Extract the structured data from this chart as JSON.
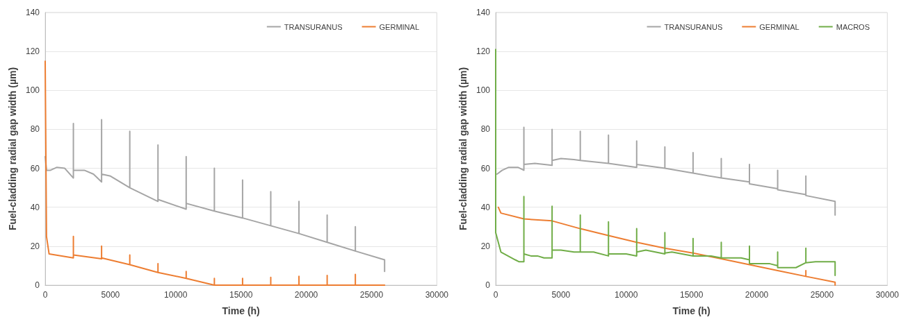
{
  "chart_data": [
    {
      "type": "line",
      "xlabel": "Time (h)",
      "ylabel": "Fuel-cladding radial gap width (µm)",
      "xlim": [
        0,
        30000
      ],
      "xticks": [
        0,
        5000,
        10000,
        15000,
        20000,
        25000,
        30000
      ],
      "ylim": [
        0,
        140
      ],
      "yticks": [
        0,
        20,
        40,
        60,
        80,
        100,
        120,
        140
      ],
      "grid": "y",
      "legend": "top right",
      "marker": "none",
      "line_style": "solid",
      "series": [
        {
          "name": "TRANSURANUS",
          "color": "#a5a5a5",
          "x": [
            0,
            100,
            400,
            900,
            1500,
            2160,
            2160,
            2160,
            3000,
            3700,
            4320,
            4320,
            4320,
            5000,
            6480,
            6480,
            6480,
            8640,
            8640,
            8640,
            10800,
            10800,
            10800,
            12960,
            12960,
            12960,
            15120,
            15120,
            15120,
            17280,
            17280,
            17280,
            19440,
            19440,
            19440,
            21600,
            21600,
            21600,
            23760,
            23760,
            23760,
            26000,
            26000
          ],
          "values": [
            66,
            59,
            59,
            60.5,
            60,
            55,
            83,
            59,
            59,
            57,
            53,
            85,
            57,
            56,
            50,
            79,
            50,
            43,
            72,
            44,
            39,
            66,
            42,
            38,
            60,
            38,
            34.5,
            54,
            34.5,
            30.5,
            48,
            30.5,
            26.5,
            43,
            26.5,
            22,
            36,
            22,
            17.5,
            30,
            17.5,
            13,
            7
          ]
        },
        {
          "name": "GERMINAL",
          "color": "#ed7d31",
          "x": [
            0,
            100,
            300,
            2160,
            2160,
            2160,
            4320,
            4320,
            4320,
            6480,
            6480,
            6480,
            8640,
            8640,
            8640,
            10800,
            10800,
            10800,
            12960,
            12960,
            12960,
            15120,
            15120,
            15120,
            17280,
            17280,
            17280,
            19440,
            19440,
            19440,
            21600,
            21600,
            21600,
            23760,
            23760,
            23760,
            26000
          ],
          "values": [
            115,
            25,
            16,
            14,
            25,
            15.5,
            13.5,
            20,
            14,
            10.5,
            15.5,
            10.5,
            6.5,
            11,
            6.5,
            3.5,
            7,
            3.5,
            0,
            3.5,
            0,
            0,
            3.5,
            0,
            0,
            4,
            0,
            0,
            4.5,
            0,
            0,
            5,
            0,
            0,
            5.5,
            0,
            0
          ]
        }
      ]
    },
    {
      "type": "line",
      "xlabel": "Time (h)",
      "ylabel": "Fuel-cladding radial gap width (µm)",
      "xlim": [
        0,
        30000
      ],
      "xticks": [
        0,
        5000,
        10000,
        15000,
        20000,
        25000,
        30000
      ],
      "ylim": [
        0,
        140
      ],
      "yticks": [
        0,
        20,
        40,
        60,
        80,
        100,
        120,
        140
      ],
      "grid": "y",
      "legend": "top right",
      "marker": "none",
      "line_style": "solid",
      "series": [
        {
          "name": "TRANSURANUS",
          "color": "#a5a5a5",
          "x": [
            100,
            500,
            1000,
            1700,
            2160,
            2160,
            2160,
            3000,
            4320,
            4320,
            4320,
            5000,
            6000,
            6480,
            6480,
            6480,
            8640,
            8640,
            8640,
            10800,
            10800,
            10800,
            12960,
            12960,
            12960,
            15120,
            15120,
            15120,
            17280,
            17280,
            17280,
            19440,
            19440,
            19440,
            21600,
            21600,
            21600,
            23760,
            23760,
            23760,
            26000,
            26000
          ],
          "values": [
            57,
            59,
            60.5,
            60.5,
            59,
            81,
            62,
            62.5,
            61.5,
            80,
            64,
            65,
            64.5,
            64,
            79,
            64,
            62.5,
            77,
            62.5,
            60.5,
            74,
            62,
            60,
            71,
            60,
            57.5,
            68,
            57.5,
            55,
            65,
            55,
            53,
            62,
            52,
            49.5,
            59,
            49,
            46.5,
            56,
            46,
            43,
            36
          ]
        },
        {
          "name": "GERMINAL",
          "color": "#ed7d31",
          "x": [
            200,
            400,
            2160,
            4320,
            6480,
            8640,
            10800,
            12960,
            15120,
            17280,
            19440,
            21600,
            23760,
            23760,
            23760,
            26000,
            26000
          ],
          "values": [
            40,
            37,
            34,
            33,
            29,
            25.5,
            22,
            19,
            16.5,
            13.5,
            10.5,
            7.5,
            4.5,
            7.5,
            4.5,
            1.5,
            0
          ]
        },
        {
          "name": "MACROS",
          "color": "#70ad47",
          "x": [
            0,
            0,
            400,
            1500,
            1800,
            2160,
            2160,
            2160,
            2700,
            3200,
            3700,
            4320,
            4320,
            4320,
            5000,
            6000,
            6480,
            6480,
            6480,
            7500,
            8640,
            8640,
            8640,
            10000,
            10800,
            10800,
            10800,
            11500,
            12960,
            12960,
            12960,
            13500,
            15120,
            15120,
            15120,
            16500,
            17280,
            17280,
            17280,
            18800,
            19440,
            19440,
            19440,
            21000,
            21600,
            21600,
            21600,
            23000,
            23760,
            23760,
            23760,
            24500,
            26000,
            26000
          ],
          "values": [
            121,
            27,
            17,
            13,
            12,
            12,
            45.5,
            16,
            15,
            15,
            14,
            14,
            40.5,
            18,
            18,
            17,
            17,
            36,
            17,
            17,
            15,
            32.5,
            16,
            16,
            15,
            29,
            17,
            18,
            16,
            27,
            16.5,
            17,
            15,
            24,
            15,
            15,
            14,
            22,
            14,
            14,
            13,
            20,
            11,
            11,
            10,
            17,
            9,
            9,
            11.5,
            19,
            11.5,
            12,
            12,
            5
          ]
        }
      ]
    }
  ]
}
